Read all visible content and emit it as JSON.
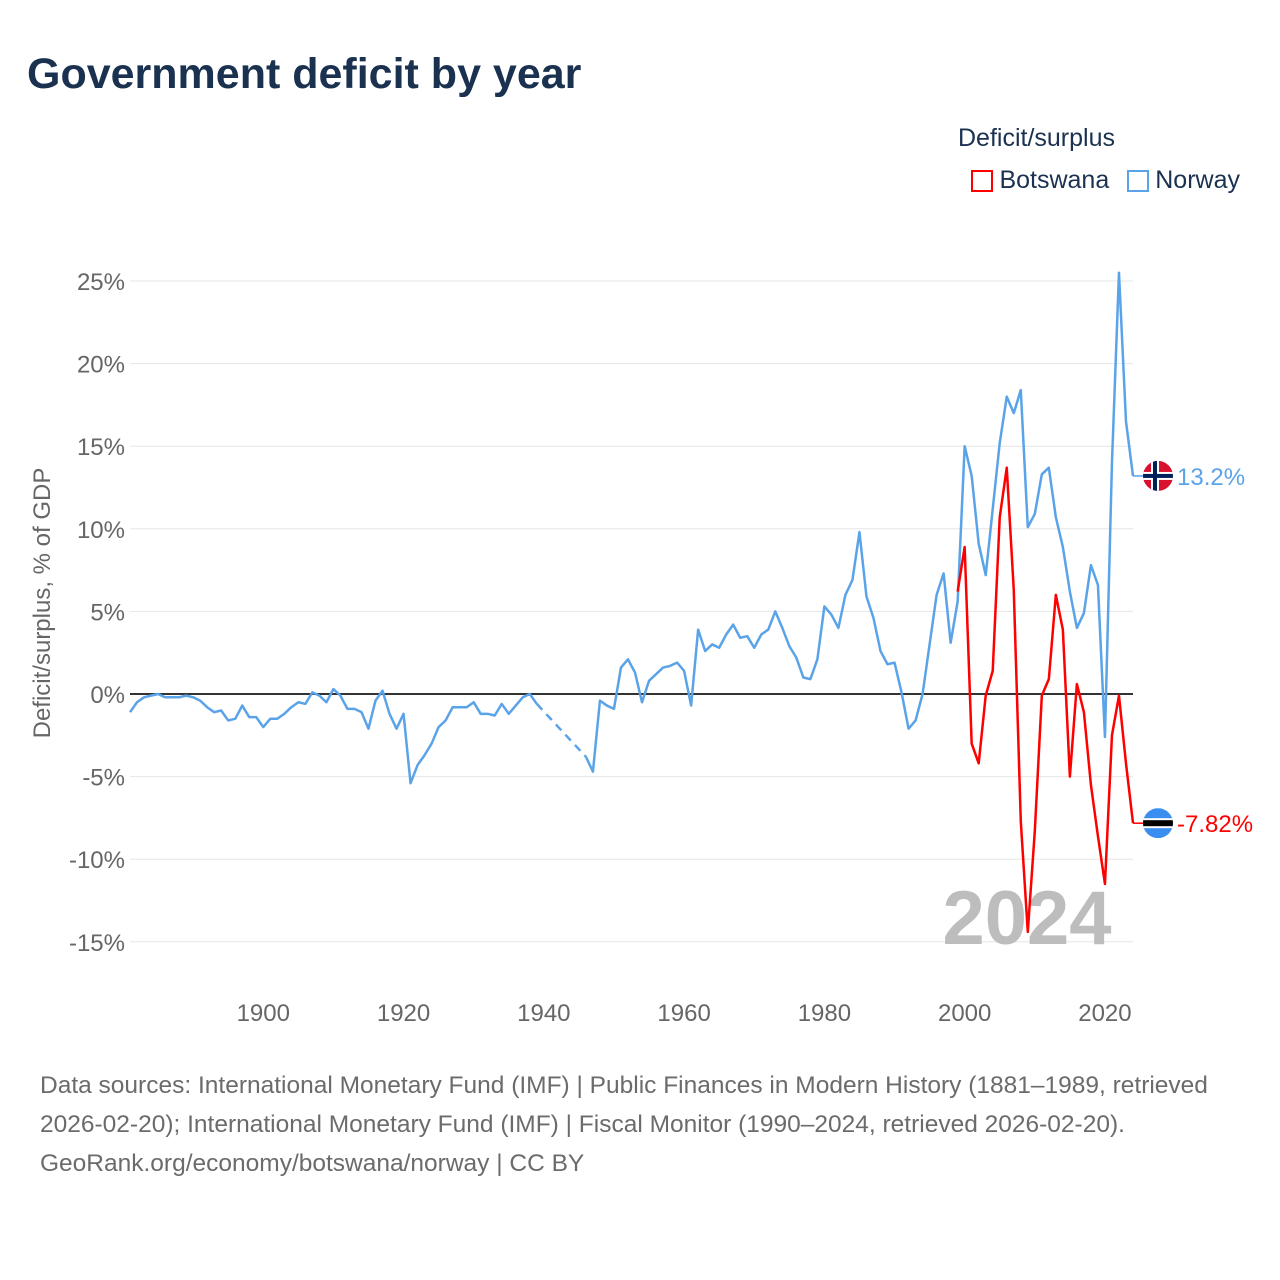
{
  "chart_data": {
    "type": "line",
    "title": "Government deficit by year",
    "ylabel": "Deficit/surplus, % of GDP",
    "xlabel": "",
    "xlim": [
      1881,
      2024
    ],
    "ylim": [
      -15,
      25
    ],
    "yticks": [
      25,
      20,
      15,
      10,
      5,
      0,
      -5,
      -10,
      -15
    ],
    "ytick_labels": [
      "25%",
      "20%",
      "15%",
      "10%",
      "5%",
      "0%",
      "-5%",
      "-10%",
      "-15%"
    ],
    "xticks": [
      1900,
      1920,
      1940,
      1960,
      1980,
      2000,
      2020
    ],
    "xtick_labels": [
      "1900",
      "1920",
      "1940",
      "1960",
      "1980",
      "2000",
      "2020"
    ],
    "grid": true,
    "legend_title": "Deficit/surplus",
    "legend_position": "top-right",
    "year_watermark": "2024",
    "series": [
      {
        "name": "Botswana",
        "color": "#ff0000",
        "end_label": "-7.82%",
        "start_year": 1999,
        "values": [
          6.2,
          8.9,
          -3.0,
          -4.2,
          -0.1,
          1.4,
          10.7,
          13.7,
          6.3,
          -7.7,
          -14.4,
          -8.3,
          -0.1,
          0.9,
          6.0,
          3.9,
          -5.0,
          0.6,
          -1.1,
          -5.5,
          -8.6,
          -11.5,
          -2.5,
          -0.1,
          -4.2,
          -7.82
        ]
      },
      {
        "name": "Norway",
        "color": "#5ba3e8",
        "end_label": "13.2%",
        "start_year": 1881,
        "values": [
          -1.1,
          -0.5,
          -0.2,
          -0.1,
          0.0,
          -0.2,
          -0.2,
          -0.2,
          -0.1,
          -0.2,
          -0.4,
          -0.8,
          -1.1,
          -1.0,
          -1.6,
          -1.5,
          -0.7,
          -1.4,
          -1.4,
          -2.0,
          -1.5,
          -1.5,
          -1.2,
          -0.8,
          -0.5,
          -0.6,
          0.1,
          -0.1,
          -0.5,
          0.3,
          -0.1,
          -0.9,
          -0.9,
          -1.1,
          -2.1,
          -0.4,
          0.2,
          -1.2,
          -2.1,
          -1.2,
          -5.4,
          -4.3,
          -3.7,
          -3.0,
          -2.0,
          -1.6,
          -0.8,
          -0.8,
          -0.8,
          -0.5,
          -1.2,
          -1.2,
          -1.3,
          -0.6,
          -1.2,
          -0.7,
          -0.2,
          0.0,
          -0.6,
          null,
          null,
          null,
          null,
          null,
          null,
          -3.8,
          -4.7,
          -0.4,
          -0.7,
          -0.9,
          1.6,
          2.1,
          1.3,
          -0.5,
          0.8,
          1.2,
          1.6,
          1.7,
          1.9,
          1.4,
          -0.7,
          3.9,
          2.6,
          3.0,
          2.8,
          3.6,
          4.2,
          3.4,
          3.5,
          2.8,
          3.6,
          3.9,
          5.0,
          4.0,
          2.9,
          2.2,
          1.0,
          0.9,
          2.1,
          5.3,
          4.8,
          4.0,
          6.0,
          6.9,
          9.8,
          5.9,
          4.6,
          2.6,
          1.8,
          1.9,
          0.1,
          -2.1,
          -1.6,
          0.0,
          3.0,
          6.0,
          7.3,
          3.1,
          5.6,
          15.0,
          13.2,
          9.1,
          7.2,
          11.2,
          15.2,
          18.0,
          17.0,
          18.4,
          10.1,
          10.9,
          13.3,
          13.7,
          10.7,
          8.9,
          6.2,
          4.0,
          4.9,
          7.8,
          6.6,
          -2.6,
          14.0,
          25.5,
          16.5,
          13.2
        ]
      }
    ]
  },
  "footer": {
    "sources": "Data sources: International Monetary Fund (IMF) | Public Finances in Modern History (1881–1989, retrieved 2026-02-20); International Monetary Fund (IMF) | Fiscal Monitor (1990–2024, retrieved 2026-02-20).",
    "credit": "GeoRank.org/economy/botswana/norway | CC BY"
  }
}
